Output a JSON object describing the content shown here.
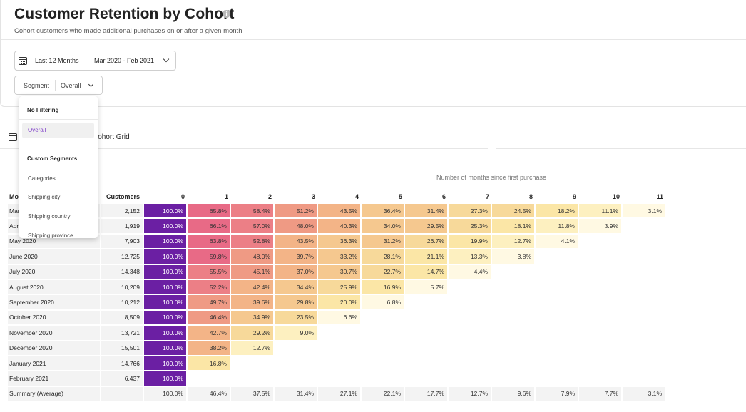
{
  "header": {
    "title": "Customer Retention by Cohort",
    "subtitle": "Cohort customers who made additional purchases on or after a given month"
  },
  "date_picker": {
    "icon": "calendar-icon",
    "range_label": "Last 12 Months",
    "range_value": "Mar 2020 - Feb 2021"
  },
  "segment": {
    "label": "Segment",
    "value": "Overall"
  },
  "dropdown": {
    "groups": [
      {
        "label": "No Filtering",
        "items": [
          "Overall"
        ]
      },
      {
        "label": "Custom Segments",
        "items": [
          "Categories",
          "Shipping city",
          "Shipping country",
          "Shipping province"
        ]
      }
    ],
    "selected": "Overall"
  },
  "tab": {
    "label": "Cohort Grid",
    "visible_text": "Cohort Grid",
    "icon": "grid-icon"
  },
  "cohort_table": {
    "axis_title": "Number of months since first purchase",
    "month_header": "Month",
    "month_header_visible": "Mo",
    "customers_header": "Customers",
    "periods": [
      "0",
      "1",
      "2",
      "3",
      "4",
      "5",
      "6",
      "7",
      "8",
      "9",
      "10",
      "11"
    ],
    "rows": [
      {
        "month": "March 2020",
        "month_visible": "Mar",
        "customers": "2,152",
        "values": [
          "100.0%",
          "65.8%",
          "58.4%",
          "51.2%",
          "43.5%",
          "36.4%",
          "31.4%",
          "27.3%",
          "24.5%",
          "18.2%",
          "11.1%",
          "3.1%"
        ]
      },
      {
        "month": "April 2020",
        "month_visible": "Apri",
        "customers": "1,919",
        "values": [
          "100.0%",
          "66.1%",
          "57.0%",
          "48.0%",
          "40.3%",
          "34.0%",
          "29.5%",
          "25.3%",
          "18.1%",
          "11.8%",
          "3.9%"
        ]
      },
      {
        "month": "May 2020",
        "month_visible": "May 2020",
        "customers": "7,903",
        "values": [
          "100.0%",
          "63.8%",
          "52.8%",
          "43.5%",
          "36.3%",
          "31.2%",
          "26.7%",
          "19.9%",
          "12.7%",
          "4.1%"
        ]
      },
      {
        "month": "June 2020",
        "month_visible": "June 2020",
        "customers": "12,725",
        "values": [
          "100.0%",
          "59.8%",
          "48.0%",
          "39.7%",
          "33.2%",
          "28.1%",
          "21.1%",
          "13.3%",
          "3.8%"
        ]
      },
      {
        "month": "July 2020",
        "month_visible": "July 2020",
        "customers": "14,348",
        "values": [
          "100.0%",
          "55.5%",
          "45.1%",
          "37.0%",
          "30.7%",
          "22.7%",
          "14.7%",
          "4.4%"
        ]
      },
      {
        "month": "August 2020",
        "month_visible": "August 2020",
        "customers": "10,209",
        "values": [
          "100.0%",
          "52.2%",
          "42.4%",
          "34.4%",
          "25.9%",
          "16.9%",
          "5.7%"
        ]
      },
      {
        "month": "September 2020",
        "month_visible": "September 2020",
        "customers": "10,212",
        "values": [
          "100.0%",
          "49.7%",
          "39.6%",
          "29.8%",
          "20.0%",
          "6.8%"
        ]
      },
      {
        "month": "October 2020",
        "month_visible": "October 2020",
        "customers": "8,509",
        "values": [
          "100.0%",
          "46.4%",
          "34.9%",
          "23.5%",
          "6.6%"
        ]
      },
      {
        "month": "November 2020",
        "month_visible": "November 2020",
        "customers": "13,721",
        "values": [
          "100.0%",
          "42.7%",
          "29.2%",
          "9.0%"
        ]
      },
      {
        "month": "December 2020",
        "month_visible": "December 2020",
        "customers": "15,501",
        "values": [
          "100.0%",
          "38.2%",
          "12.7%"
        ]
      },
      {
        "month": "January 2021",
        "month_visible": "January 2021",
        "customers": "14,766",
        "values": [
          "100.0%",
          "16.8%"
        ]
      },
      {
        "month": "February 2021",
        "month_visible": "February 2021",
        "customers": "6,437",
        "values": [
          "100.0%"
        ]
      }
    ],
    "summary": {
      "label": "Summary (Average)",
      "customers": "",
      "values": [
        "100.0%",
        "46.4%",
        "37.5%",
        "31.4%",
        "27.1%",
        "22.1%",
        "17.7%",
        "12.7%",
        "9.6%",
        "7.9%",
        "7.7%",
        "3.1%"
      ]
    },
    "colors": {
      "period_zero": "#6b1fa3",
      "scale": [
        "#fff9e3",
        "#fdf0c0",
        "#fbe6a6",
        "#f7d99a",
        "#f5c88f",
        "#f3b487",
        "#ef9a84",
        "#ec7f86",
        "#e86a86"
      ]
    }
  }
}
